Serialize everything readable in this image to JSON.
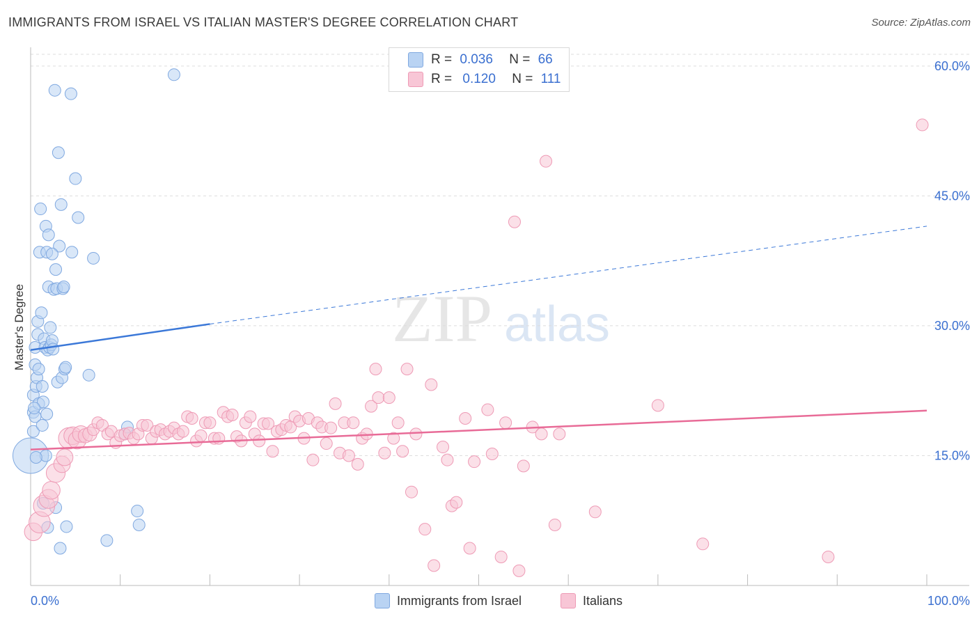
{
  "title": "IMMIGRANTS FROM ISRAEL VS ITALIAN MASTER'S DEGREE CORRELATION CHART",
  "source": "Source: ZipAtlas.com",
  "watermark": {
    "zip": "ZIP",
    "atlas": "atlas"
  },
  "legend": {
    "r_label": "R =",
    "n_label": "N =",
    "rows": [
      {
        "r": "0.036",
        "n": "66"
      },
      {
        "r": "0.120",
        "n": "111"
      }
    ]
  },
  "bottom_legend": [
    "Immigrants from Israel",
    "Italians"
  ],
  "colors": {
    "blue_fill": "#b9d3f3",
    "blue_stroke": "#7fa8e0",
    "blue_line": "#3b78d8",
    "pink_fill": "#f8c6d6",
    "pink_stroke": "#ee9ab5",
    "pink_line": "#e86b97",
    "tick_label": "#3a6fd0",
    "grid": "#dddddd"
  },
  "chart_data": {
    "type": "scatter",
    "ylabel": "Master's Degree",
    "xlabel": "",
    "xlim": [
      0,
      100
    ],
    "ylim": [
      0,
      62
    ],
    "x_tick_labels": [
      "0.0%",
      "100.0%"
    ],
    "y_ticks": [
      15,
      30,
      45,
      60
    ],
    "y_tick_labels": [
      "15.0%",
      "30.0%",
      "45.0%",
      "60.0%"
    ],
    "grid": "horizontal dashed",
    "series": [
      {
        "name": "Immigrants from Israel",
        "r": 0.036,
        "n": 66,
        "trend": {
          "x0": 0,
          "y0": 27.2,
          "x1": 20,
          "y1": 30.2,
          "dashed_to_x": 100,
          "dashed_to_y": 41.5
        },
        "points": [
          [
            0,
            15,
            3
          ],
          [
            0.3,
            17.8,
            1
          ],
          [
            0.3,
            20,
            1
          ],
          [
            0.3,
            22,
            1
          ],
          [
            0.5,
            19.5,
            1
          ],
          [
            0.5,
            25.5,
            1
          ],
          [
            0.5,
            27.5,
            1
          ],
          [
            0.6,
            23,
            1
          ],
          [
            0.7,
            24,
            1
          ],
          [
            0.8,
            30.5,
            1
          ],
          [
            0.8,
            29,
            1
          ],
          [
            0.9,
            25,
            1
          ],
          [
            0.9,
            21,
            1
          ],
          [
            1,
            38.5,
            1
          ],
          [
            1.1,
            43.5,
            1
          ],
          [
            1.2,
            31.5,
            1
          ],
          [
            1.3,
            23,
            1
          ],
          [
            1.3,
            18.5,
            1
          ],
          [
            1.4,
            21.2,
            1
          ],
          [
            1.5,
            28.5,
            1
          ],
          [
            1.6,
            27.5,
            1
          ],
          [
            1.7,
            41.5,
            1
          ],
          [
            1.7,
            15,
            1
          ],
          [
            1.8,
            19.8,
            1
          ],
          [
            1.8,
            38.5,
            1
          ],
          [
            1.9,
            27.2,
            1
          ],
          [
            2,
            34.5,
            1
          ],
          [
            2,
            40.5,
            1
          ],
          [
            2.1,
            27.5,
            1
          ],
          [
            2.2,
            29.8,
            1
          ],
          [
            2.3,
            27.8,
            1
          ],
          [
            2.4,
            28.3,
            1
          ],
          [
            2.5,
            27.3,
            1
          ],
          [
            2.6,
            34.2,
            1
          ],
          [
            2.7,
            57.2,
            1
          ],
          [
            2.8,
            36.5,
            1
          ],
          [
            2.8,
            9,
            1
          ],
          [
            2.9,
            34.3,
            1
          ],
          [
            3,
            23.5,
            1
          ],
          [
            3.1,
            50,
            1
          ],
          [
            3.2,
            39.2,
            1
          ],
          [
            3.3,
            4.3,
            1
          ],
          [
            3.4,
            44,
            1
          ],
          [
            3.5,
            24,
            1
          ],
          [
            3.6,
            34.3,
            1
          ],
          [
            3.7,
            34.5,
            1
          ],
          [
            3.8,
            25,
            1
          ],
          [
            3.9,
            25.2,
            1
          ],
          [
            4,
            6.8,
            1
          ],
          [
            4.5,
            56.8,
            1
          ],
          [
            4.6,
            38.5,
            1
          ],
          [
            5,
            47,
            1
          ],
          [
            5.3,
            42.5,
            1
          ],
          [
            6.5,
            24.3,
            1
          ],
          [
            7,
            37.8,
            1
          ],
          [
            8.5,
            5.2,
            1
          ],
          [
            10.5,
            17.5,
            1
          ],
          [
            10.8,
            18.3,
            1
          ],
          [
            11.9,
            8.6,
            1
          ],
          [
            12.1,
            7,
            1
          ],
          [
            16,
            59,
            1
          ],
          [
            1.4,
            9.5,
            1
          ],
          [
            1.9,
            6.7,
            1
          ],
          [
            2.4,
            38.3,
            1
          ],
          [
            0.4,
            20.5,
            1
          ],
          [
            0.6,
            14.8,
            1
          ]
        ]
      },
      {
        "name": "Italians",
        "r": 0.12,
        "n": 111,
        "trend": {
          "x0": 0,
          "y0": 15.7,
          "x1": 100,
          "y1": 20.2
        },
        "points": [
          [
            0.3,
            6.2,
            1.5
          ],
          [
            1,
            7.3,
            1.8
          ],
          [
            1.5,
            9.2,
            1.8
          ],
          [
            2,
            10,
            1.6
          ],
          [
            2.3,
            11,
            1.5
          ],
          [
            2.8,
            13,
            1.6
          ],
          [
            3.5,
            14,
            1.4
          ],
          [
            3.8,
            14.8,
            1.4
          ],
          [
            4.3,
            17,
            1.8
          ],
          [
            4.7,
            17.3,
            1.5
          ],
          [
            5.2,
            16.8,
            1.5
          ],
          [
            5.6,
            17.5,
            1.4
          ],
          [
            6.1,
            17.3,
            1.2
          ],
          [
            6.6,
            17.5,
            1.2
          ],
          [
            7,
            18,
            1
          ],
          [
            7.5,
            18.8,
            1
          ],
          [
            8,
            18.5,
            1
          ],
          [
            8.6,
            17.5,
            1
          ],
          [
            9,
            17.8,
            1
          ],
          [
            9.5,
            16.5,
            1
          ],
          [
            10,
            17.3,
            1
          ],
          [
            10.5,
            17.5,
            1
          ],
          [
            11,
            17.6,
            1
          ],
          [
            11.5,
            17,
            1
          ],
          [
            12,
            17.5,
            1
          ],
          [
            12.5,
            18.5,
            1
          ],
          [
            13,
            18.5,
            1
          ],
          [
            13.5,
            17,
            1
          ],
          [
            14,
            17.8,
            1
          ],
          [
            14.5,
            18,
            1
          ],
          [
            15,
            17.5,
            1
          ],
          [
            15.5,
            17.8,
            1
          ],
          [
            16,
            18.2,
            1
          ],
          [
            16.5,
            17.5,
            1
          ],
          [
            17,
            17.8,
            1
          ],
          [
            17.5,
            19.5,
            1
          ],
          [
            18,
            19.3,
            1
          ],
          [
            18.5,
            16.7,
            1
          ],
          [
            19,
            17.3,
            1
          ],
          [
            19.5,
            18.8,
            1
          ],
          [
            20,
            18.8,
            1
          ],
          [
            20.5,
            17,
            1
          ],
          [
            21,
            17,
            1
          ],
          [
            21.5,
            20,
            1
          ],
          [
            22,
            19.5,
            1
          ],
          [
            22.5,
            19.7,
            1
          ],
          [
            23,
            17.2,
            1
          ],
          [
            23.5,
            16.7,
            1
          ],
          [
            24,
            18.8,
            1
          ],
          [
            24.5,
            19.5,
            1
          ],
          [
            25,
            17.5,
            1
          ],
          [
            25.5,
            16.7,
            1
          ],
          [
            26,
            18.7,
            1
          ],
          [
            26.5,
            18.7,
            1
          ],
          [
            27,
            15.5,
            1
          ],
          [
            27.5,
            17.8,
            1
          ],
          [
            28,
            18,
            1
          ],
          [
            28.5,
            18.5,
            1
          ],
          [
            29,
            18.3,
            1
          ],
          [
            29.5,
            19.5,
            1
          ],
          [
            30,
            19,
            1
          ],
          [
            30.5,
            17,
            1
          ],
          [
            31,
            19.3,
            1
          ],
          [
            31.5,
            14.5,
            1
          ],
          [
            32,
            18.8,
            1
          ],
          [
            32.5,
            18.3,
            1
          ],
          [
            33,
            16.4,
            1
          ],
          [
            33.5,
            18.2,
            1
          ],
          [
            34,
            21,
            1
          ],
          [
            34.5,
            15.3,
            1
          ],
          [
            35,
            18.8,
            1
          ],
          [
            35.5,
            15,
            1
          ],
          [
            36,
            18.8,
            1
          ],
          [
            36.5,
            14,
            1
          ],
          [
            37,
            17,
            1
          ],
          [
            37.5,
            17.5,
            1
          ],
          [
            38,
            20.7,
            1
          ],
          [
            38.5,
            25,
            1
          ],
          [
            38.8,
            21.7,
            1
          ],
          [
            39.5,
            15.3,
            1
          ],
          [
            40,
            21.7,
            1
          ],
          [
            40.5,
            17,
            1
          ],
          [
            41,
            18.8,
            1
          ],
          [
            41.5,
            15.5,
            1
          ],
          [
            42,
            25,
            1
          ],
          [
            42.5,
            10.8,
            1
          ],
          [
            43,
            17.5,
            1
          ],
          [
            44,
            6.5,
            1
          ],
          [
            44.7,
            23.2,
            1
          ],
          [
            45,
            2.3,
            1
          ],
          [
            46,
            16,
            1
          ],
          [
            46.5,
            14.5,
            1
          ],
          [
            47,
            9.2,
            1
          ],
          [
            47.5,
            9.6,
            1
          ],
          [
            48.5,
            19.3,
            1
          ],
          [
            49,
            4.3,
            1
          ],
          [
            49.5,
            14.3,
            1
          ],
          [
            51,
            20.3,
            1
          ],
          [
            51.5,
            15.2,
            1
          ],
          [
            52.5,
            3.3,
            1
          ],
          [
            53,
            18.8,
            1
          ],
          [
            54.5,
            1.7,
            1
          ],
          [
            55,
            13.8,
            1
          ],
          [
            56,
            18.3,
            1
          ],
          [
            57,
            17.5,
            1
          ],
          [
            58.5,
            7,
            1
          ],
          [
            59,
            17.5,
            1
          ],
          [
            63,
            8.5,
            1
          ],
          [
            70,
            20.8,
            1
          ],
          [
            75,
            4.8,
            1
          ],
          [
            89,
            3.3,
            1
          ],
          [
            54,
            42,
            1
          ],
          [
            57.5,
            49,
            1
          ],
          [
            99.5,
            53.2,
            1
          ]
        ]
      }
    ]
  }
}
